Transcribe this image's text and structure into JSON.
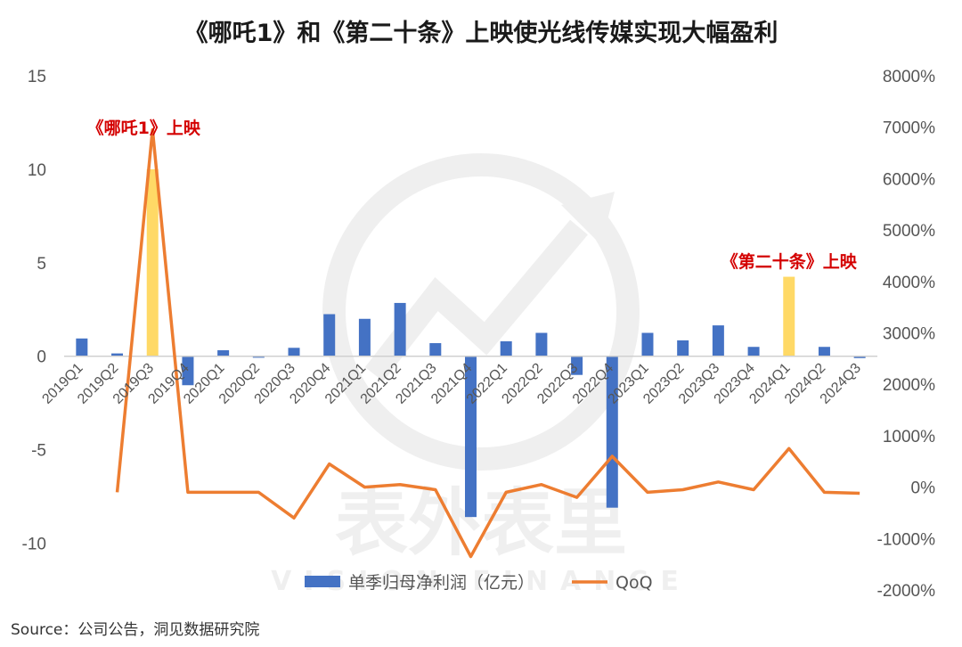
{
  "chart_data": {
    "type": "bar+line",
    "title": "《哪吒1》和《第二十条》上映使光线传媒实现大幅盈利",
    "categories": [
      "2019Q1",
      "2019Q2",
      "2019Q3",
      "2019Q4",
      "2020Q1",
      "2020Q2",
      "2020Q3",
      "2020Q4",
      "2021Q1",
      "2021Q2",
      "2021Q3",
      "2021Q4",
      "2022Q1",
      "2022Q2",
      "2022Q3",
      "2022Q4",
      "2023Q1",
      "2023Q2",
      "2023Q3",
      "2023Q4",
      "2024Q1",
      "2024Q2",
      "2024Q3"
    ],
    "series": [
      {
        "name": "单季归母净利润（亿元）",
        "type": "bar",
        "axis": "left",
        "values": [
          0.95,
          0.15,
          10.0,
          -1.55,
          0.32,
          -0.08,
          0.45,
          2.25,
          2.0,
          2.85,
          0.7,
          -8.6,
          0.8,
          1.25,
          -1.0,
          -8.1,
          1.25,
          0.85,
          1.65,
          0.5,
          4.25,
          0.5,
          -0.1
        ],
        "colors": {
          "default": "#4472C4",
          "highlight": "#FFD966"
        },
        "highlight_categories": [
          "2019Q3",
          "2024Q1"
        ]
      },
      {
        "name": "QoQ",
        "type": "line",
        "axis": "right",
        "color": "#ED7D31",
        "values": [
          null,
          -100,
          6950,
          -100,
          -100,
          -100,
          -600,
          450,
          0,
          50,
          -50,
          -1350,
          -100,
          50,
          -200,
          600,
          -100,
          -50,
          100,
          -50,
          750,
          -100,
          -120
        ]
      }
    ],
    "y_left": {
      "ylim": [
        -12.5,
        15
      ],
      "ticks": [
        -10,
        -5,
        0,
        5,
        10,
        15
      ],
      "tick_labels": [
        "-10",
        "-5",
        "0",
        "5",
        "10",
        "15"
      ]
    },
    "y_right": {
      "ylim": [
        -2000,
        8000
      ],
      "ticks": [
        -2000,
        -1000,
        0,
        1000,
        2000,
        3000,
        4000,
        5000,
        6000,
        7000,
        8000
      ],
      "tick_labels": [
        "-2000%",
        "-1000%",
        "0%",
        "1000%",
        "2000%",
        "3000%",
        "4000%",
        "5000%",
        "6000%",
        "7000%",
        "8000%"
      ]
    },
    "annotations": [
      {
        "text": "《哪吒1》上映",
        "category": "2019Q3",
        "color": "#D40000"
      },
      {
        "text": "《第二十条》上映",
        "category": "2024Q1",
        "color": "#D40000"
      }
    ],
    "grid": false,
    "legend": "bottom"
  },
  "watermark": {
    "text_cn": "表外表里",
    "text_en": "VISION FINANCE"
  },
  "source": "Source：公司公告，洞见数据研究院"
}
